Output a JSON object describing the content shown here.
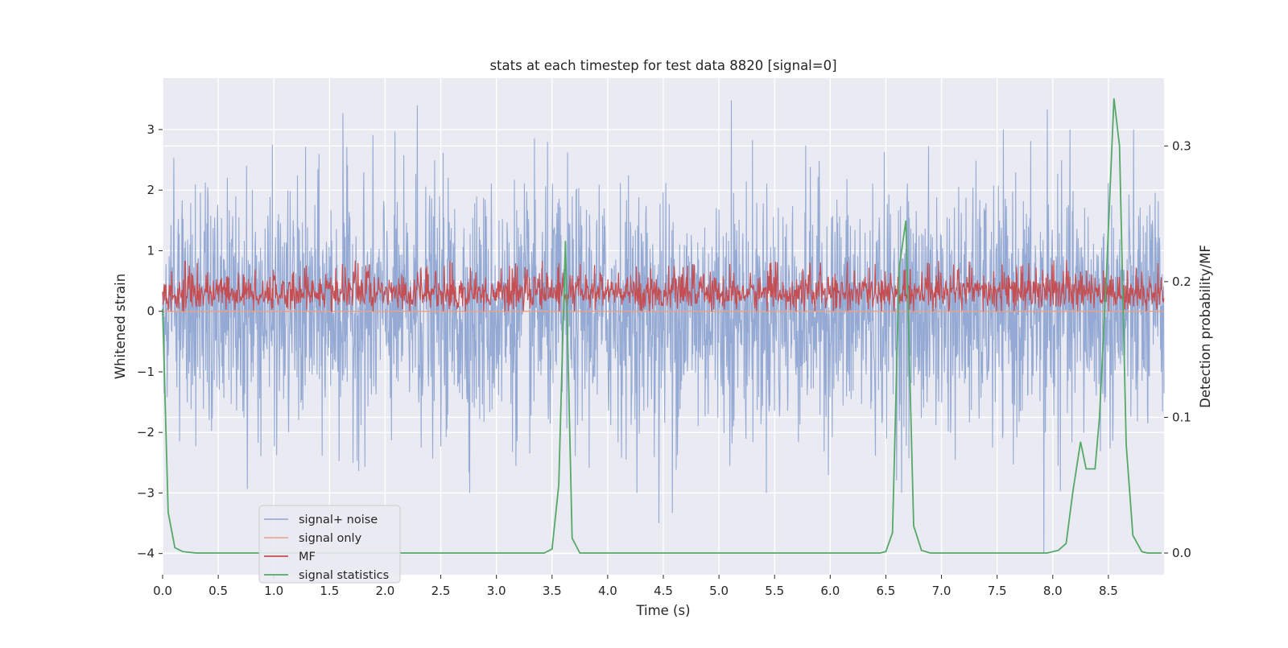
{
  "chart_data": {
    "type": "line",
    "title": "stats at each timestep for test data 8820 [signal=0]",
    "xlabel": "Time (s)",
    "ylabel": "Whitened strain",
    "y2label": "Detection probability/MF",
    "xlim": [
      0,
      9.0
    ],
    "ylim": [
      -4.35,
      3.85
    ],
    "y2lim": [
      -0.016,
      0.35
    ],
    "xticks": [
      "0.0",
      "0.5",
      "1.0",
      "1.5",
      "2.0",
      "2.5",
      "3.0",
      "3.5",
      "4.0",
      "4.5",
      "5.0",
      "5.5",
      "6.0",
      "6.5",
      "7.0",
      "7.5",
      "8.0",
      "8.5"
    ],
    "xtick_values": [
      0,
      0.5,
      1.0,
      1.5,
      2.0,
      2.5,
      3.0,
      3.5,
      4.0,
      4.5,
      5.0,
      5.5,
      6.0,
      6.5,
      7.0,
      7.5,
      8.0,
      8.5
    ],
    "yticks": [
      "3",
      "2",
      "1",
      "0",
      "−1",
      "−2",
      "−3",
      "−4"
    ],
    "ytick_values": [
      3,
      2,
      1,
      0,
      -1,
      -2,
      -3,
      -4
    ],
    "y2ticks": [
      "0.3",
      "0.2",
      "0.1",
      "0.0"
    ],
    "y2tick_values": [
      0.3,
      0.2,
      0.1,
      0.0
    ],
    "grid": true,
    "legend_position": "lower-left",
    "series": [
      {
        "name": "signal+ noise",
        "axis": "left",
        "color": "#8fa5d1",
        "description_of_values": "noisy whitened strain, roughly within -3.5 to 3.5 across 0-9 s",
        "peaks": [
          {
            "x": 1.62,
            "y": 3.27
          },
          {
            "x": 2.29,
            "y": 3.4
          },
          {
            "x": 5.11,
            "y": 3.48
          },
          {
            "x": 7.95,
            "y": 3.33
          },
          {
            "x": 7.92,
            "y": -4.0
          },
          {
            "x": 4.46,
            "y": -3.5
          },
          {
            "x": 4.58,
            "y": -3.33
          }
        ]
      },
      {
        "name": "signal only",
        "axis": "left",
        "color": "#e8a286",
        "values_note": "flat at zero"
      },
      {
        "name": "MF",
        "axis": "left",
        "color": "#c44e52",
        "range": [
          0.0,
          0.85
        ]
      },
      {
        "name": "signal statistics",
        "axis": "right",
        "color": "#55a868",
        "x": [
          0.0,
          0.05,
          0.11,
          0.18,
          0.3,
          0.5,
          3.3,
          3.43,
          3.5,
          3.56,
          3.62,
          3.68,
          3.75,
          4.0,
          6.3,
          6.45,
          6.5,
          6.56,
          6.62,
          6.68,
          6.75,
          6.82,
          6.9,
          7.1,
          7.8,
          7.95,
          8.05,
          8.12,
          8.18,
          8.25,
          8.3,
          8.38,
          8.42,
          8.48,
          8.55,
          8.6,
          8.66,
          8.72,
          8.8,
          8.85,
          8.9,
          8.98
        ],
        "y": [
          0.18,
          0.03,
          0.004,
          0.001,
          0.0,
          0.0,
          0.0,
          0.0,
          0.003,
          0.05,
          0.23,
          0.011,
          0.0,
          0.0,
          0.0,
          0.0,
          0.001,
          0.015,
          0.21,
          0.245,
          0.02,
          0.002,
          0.0,
          0.0,
          0.0,
          0.0,
          0.002,
          0.007,
          0.045,
          0.082,
          0.062,
          0.062,
          0.1,
          0.2,
          0.335,
          0.3,
          0.08,
          0.013,
          0.001,
          0.0,
          0.0,
          0.0
        ]
      }
    ]
  }
}
